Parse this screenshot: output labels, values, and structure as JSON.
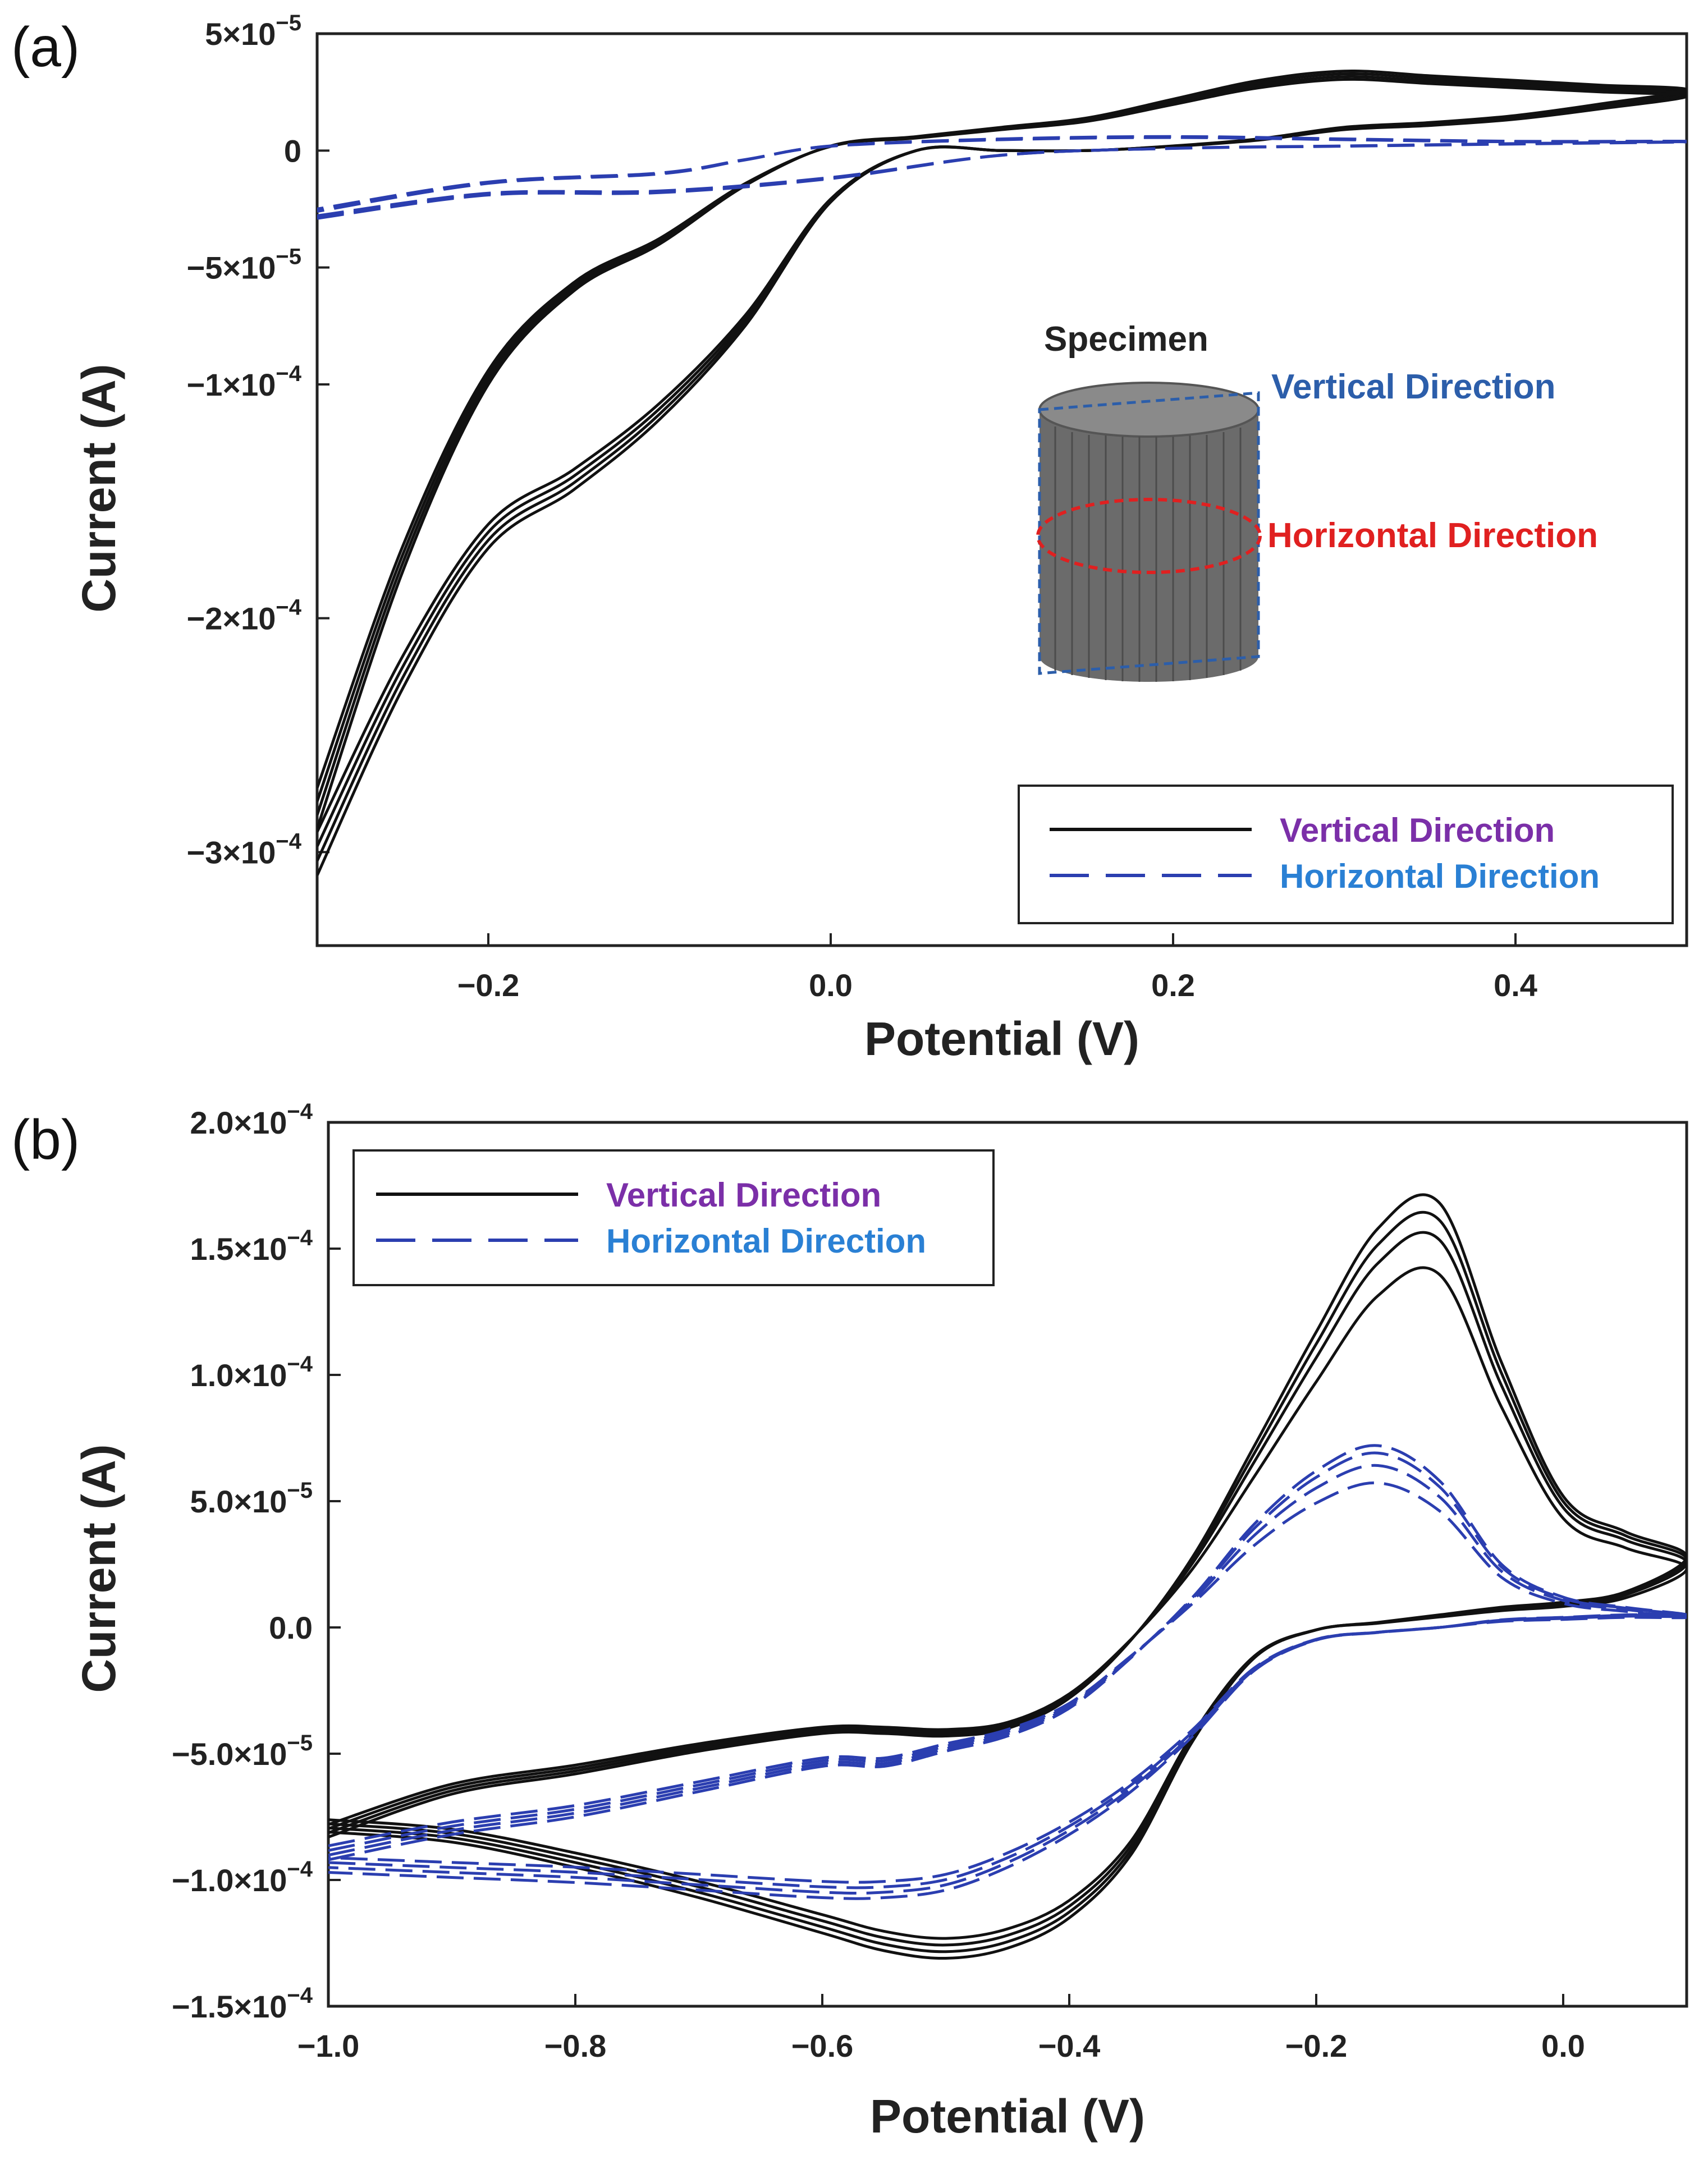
{
  "panels": [
    {
      "label": "(a)"
    },
    {
      "label": "(b)"
    }
  ],
  "colors": {
    "vertical_line": "#111111",
    "horizontal_line": "#2b3eb0",
    "vertical_legend_text": "#7b2fa8",
    "horizontal_legend_text": "#2a80d4",
    "inset_vertical_text": "#2c5eaa",
    "inset_horizontal_text": "#e02020"
  },
  "inset": {
    "title": "Specimen",
    "vertical_label": "Vertical Direction",
    "horizontal_label": "Horizontal Direction"
  },
  "chart_data": [
    {
      "type": "line",
      "title": "",
      "xlabel": "Potential (V)",
      "ylabel": "Current (A)",
      "xlim": [
        -0.3,
        0.5
      ],
      "ylim": [
        -0.00034,
        5e-05
      ],
      "x_ticks": [
        -0.2,
        0.0,
        0.2,
        0.4
      ],
      "x_tick_labels": [
        "−0.2",
        "0.0",
        "0.2",
        "0.4"
      ],
      "y_ticks": [
        5e-05,
        0,
        -5e-05,
        -0.0001,
        -0.0002,
        -0.0003
      ],
      "y_tick_labels": [
        {
          "base": "5×10",
          "exp": "−5"
        },
        {
          "base": "0",
          "exp": ""
        },
        {
          "base": "−5×10",
          "exp": "−5"
        },
        {
          "base": "−1×10",
          "exp": "−4"
        },
        {
          "base": "−2×10",
          "exp": "−4"
        },
        {
          "base": "−3×10",
          "exp": "−4"
        }
      ],
      "legend": {
        "position": "bottom-right",
        "entries": [
          "Vertical Direction",
          "Horizontal Direction"
        ]
      },
      "series": [
        {
          "name": "Vertical Direction",
          "style": "solid",
          "cycles": 4,
          "x": [
            -0.3,
            -0.25,
            -0.2,
            -0.15,
            -0.1,
            -0.05,
            0.0,
            0.05,
            0.1,
            0.15,
            0.2,
            0.25,
            0.3,
            0.35,
            0.4,
            0.45,
            0.5,
            0.45,
            0.4,
            0.35,
            0.3,
            0.25,
            0.2,
            0.15,
            0.1,
            0.05,
            0.0,
            -0.05,
            -0.1,
            -0.15,
            -0.2,
            -0.25,
            -0.3
          ],
          "y": [
            -0.00031,
            -0.00023,
            -0.00017,
            -0.000145,
            -0.000115,
            -7.5e-05,
            -2.2e-05,
            0.0,
            0.0,
            0.0,
            2e-06,
            5e-06,
            1e-05,
            1.2e-05,
            1.5e-05,
            2e-05,
            2.6e-05,
            2.8e-05,
            3e-05,
            3.2e-05,
            3.4e-05,
            3e-05,
            2.2e-05,
            1.4e-05,
            1e-05,
            6e-06,
            2e-06,
            -1.5e-05,
            -4e-05,
            -6e-05,
            -0.0001,
            -0.00018,
            -0.00029
          ]
        },
        {
          "name": "Horizontal Direction",
          "style": "dashed",
          "cycles": 3,
          "x": [
            -0.3,
            -0.2,
            -0.1,
            0.0,
            0.1,
            0.2,
            0.3,
            0.4,
            0.5,
            0.4,
            0.3,
            0.2,
            0.1,
            0.0,
            -0.05,
            -0.1,
            -0.2,
            -0.3
          ],
          "y": [
            -2.9e-05,
            -1.9e-05,
            -1.8e-05,
            -1.2e-05,
            -2e-06,
            1e-06,
            2e-06,
            3e-06,
            4e-06,
            4e-06,
            5e-06,
            6e-06,
            5e-06,
            2e-06,
            -4e-06,
            -1e-05,
            -1.4e-05,
            -2.6e-05
          ]
        }
      ]
    },
    {
      "type": "line",
      "title": "",
      "xlabel": "Potential (V)",
      "ylabel": "Current (A)",
      "xlim": [
        -1.0,
        0.1
      ],
      "ylim": [
        -0.00015,
        0.0002
      ],
      "x_ticks": [
        -1.0,
        -0.8,
        -0.6,
        -0.4,
        -0.2,
        0.0
      ],
      "x_tick_labels": [
        "−1.0",
        "−0.8",
        "−0.6",
        "−0.4",
        "−0.2",
        "0.0"
      ],
      "y_ticks": [
        0.0002,
        0.00015,
        0.0001,
        5e-05,
        0,
        -5e-05,
        -0.0001,
        -0.00015
      ],
      "y_tick_labels": [
        {
          "base": "2.0×10",
          "exp": "−4"
        },
        {
          "base": "1.5×10",
          "exp": "−4"
        },
        {
          "base": "1.0×10",
          "exp": "−4"
        },
        {
          "base": "5.0×10",
          "exp": "−5"
        },
        {
          "base": "0.0",
          "exp": ""
        },
        {
          "base": "−5.0×10",
          "exp": "−5"
        },
        {
          "base": "−1.0×10",
          "exp": "−4"
        },
        {
          "base": "−1.5×10",
          "exp": "−4"
        }
      ],
      "legend": {
        "position": "top-left",
        "entries": [
          "Vertical Direction",
          "Horizontal Direction"
        ]
      },
      "series": [
        {
          "name": "Vertical Direction",
          "style": "solid",
          "cycles": 4,
          "peak_currents": [
            0.000172,
            0.000165,
            0.000157,
            0.000143
          ],
          "x": [
            -1.0,
            -0.9,
            -0.8,
            -0.7,
            -0.6,
            -0.55,
            -0.5,
            -0.45,
            -0.4,
            -0.35,
            -0.3,
            -0.25,
            -0.2,
            -0.15,
            -0.1,
            -0.05,
            0.0,
            0.05,
            0.1,
            0.05,
            0.0,
            -0.05,
            -0.1,
            -0.15,
            -0.2,
            -0.25,
            -0.3,
            -0.35,
            -0.4,
            -0.45,
            -0.5,
            -0.55,
            -0.6,
            -0.7,
            -0.8,
            -0.9,
            -1.0
          ],
          "y": [
            -8.3e-05,
            -6.6e-05,
            -5.8e-05,
            -4.9e-05,
            -4.2e-05,
            -4.2e-05,
            -4.3e-05,
            -4e-05,
            -2.8e-05,
            -5e-06,
            2.8e-05,
            7.2e-05,
            0.000117,
            0.000158,
            0.000168,
            0.000105,
            5.2e-05,
            3.8e-05,
            2.8e-05,
            1.4e-05,
            1e-05,
            8e-06,
            5e-06,
            2e-06,
            -1e-06,
            -1.2e-05,
            -4.5e-05,
            -9e-05,
            -0.000115,
            -0.000127,
            -0.000131,
            -0.000128,
            -0.000121,
            -0.000107,
            -9.5e-05,
            -8.5e-05,
            -8.1e-05
          ]
        },
        {
          "name": "Horizontal Direction",
          "style": "dashed",
          "cycles": 4,
          "peak_currents": [
            7.3e-05,
            7e-05,
            6.5e-05,
            5.8e-05
          ],
          "x": [
            -1.0,
            -0.9,
            -0.8,
            -0.7,
            -0.6,
            -0.55,
            -0.5,
            -0.45,
            -0.4,
            -0.35,
            -0.3,
            -0.25,
            -0.2,
            -0.15,
            -0.1,
            -0.05,
            0.0,
            0.05,
            0.1,
            0.05,
            0.0,
            -0.05,
            -0.1,
            -0.15,
            -0.2,
            -0.25,
            -0.3,
            -0.35,
            -0.4,
            -0.45,
            -0.5,
            -0.55,
            -0.6,
            -0.7,
            -0.8,
            -0.9,
            -1.0
          ],
          "y": [
            -9.2e-05,
            -8.2e-05,
            -7.5e-05,
            -6.5e-05,
            -5.5e-05,
            -5.5e-05,
            -4.9e-05,
            -4.3e-05,
            -3.2e-05,
            -1.2e-05,
            1.2e-05,
            4.1e-05,
            6.2e-05,
            7.2e-05,
            5.8e-05,
            2.5e-05,
            1.2e-05,
            8e-06,
            5e-06,
            5e-06,
            4e-06,
            3e-06,
            0.0,
            -2e-06,
            -5e-06,
            -1.7e-05,
            -4.3e-05,
            -6.5e-05,
            -8.2e-05,
            -9.5e-05,
            -0.000104,
            -0.000107,
            -0.000107,
            -0.000104,
            -0.000101,
            -9.9e-05,
            -9.7e-05
          ]
        }
      ]
    }
  ]
}
